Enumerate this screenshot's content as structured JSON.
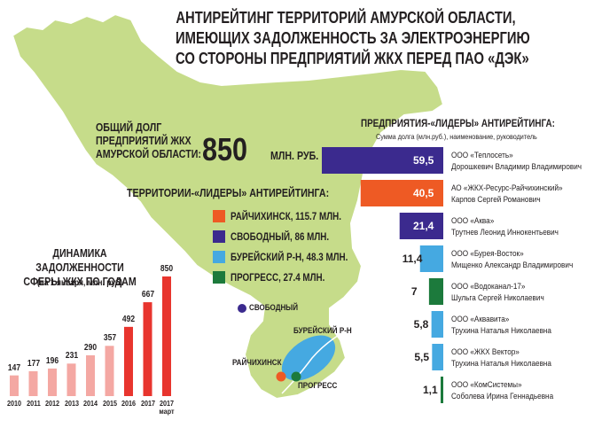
{
  "title": {
    "line1": "АНТИРЕЙТИНГ ТЕРРИТОРИЙ АМУРСКОЙ ОБЛАСТИ,",
    "line2": "ИМЕЮЩИХ ЗАДОЛЖЕННОСТЬ ЗА ЭЛЕКТРОЭНЕРГИЮ",
    "line3": "СО СТОРОНЫ ПРЕДПРИЯТИЙ ЖКХ ПЕРЕД ПАО «ДЭК»"
  },
  "total_debt": {
    "line1": "ОБЩИЙ ДОЛГ",
    "line2": "ПРЕДПРИЯТИЙ ЖКХ",
    "line3": "АМУРСКОЙ ОБЛАСТИ:",
    "value": "850",
    "unit": "МЛН. РУБ."
  },
  "territories": {
    "heading": "ТЕРРИТОРИИ-«ЛИДЕРЫ» АНТИРЕЙТИНГА:",
    "items": [
      {
        "label": "РАЙЧИХИНСК, 115.7 МЛН.",
        "color": "#ee5a24"
      },
      {
        "label": "СВОБОДНЫЙ, 86 МЛН.",
        "color": "#3b2a8e"
      },
      {
        "label": "БУРЕЙСКИЙ Р-Н, 48.3 МЛН.",
        "color": "#45a9e1"
      },
      {
        "label": "ПРОГРЕСС, 27.4 МЛН.",
        "color": "#1c7a3c"
      }
    ]
  },
  "map_labels": {
    "svobodny": "СВОБОДНЫЙ",
    "bureya": "БУРЕЙСКИЙ Р-Н",
    "raichikhinsk": "РАЙЧИХИНСК",
    "progress": "ПРОГРЕСС"
  },
  "dynamics": {
    "title_line1": "ДИНАМИКА ЗАДОЛЖЕННОСТИ",
    "title_line2": "СФЕРЫ ЖКХ ПО ГОДАМ",
    "note": "(на 1 января, млн. руб)"
  },
  "leaders": {
    "heading": "ПРЕДПРИЯТИЯ-«ЛИДЕРЫ» АНТИРЕЙТИНГА:",
    "subheading": "Сумма долга (млн.руб.), наименование, руководитель"
  },
  "colors": {
    "map_fill": "#c6dc8a",
    "navy": "#3b2a8e",
    "orange": "#ee5a24",
    "light_blue": "#45a9e1",
    "green": "#1c7a3c",
    "hist_red": "#e8352e",
    "hist_light": "#f4a8a3"
  },
  "chart_data": [
    {
      "type": "bar",
      "orientation": "vertical",
      "categories": [
        "2010",
        "2011",
        "2012",
        "2013",
        "2014",
        "2015",
        "2016",
        "2017",
        "2017 март"
      ],
      "values": [
        147,
        177,
        196,
        231,
        290,
        357,
        492,
        667,
        850
      ],
      "value_labels": [
        "147",
        "177",
        "196",
        "231",
        "290",
        "357",
        "492",
        "667",
        "850"
      ],
      "year_labels": [
        [
          "2010"
        ],
        [
          "2011"
        ],
        [
          "2012"
        ],
        [
          "2013"
        ],
        [
          "2014"
        ],
        [
          "2015"
        ],
        [
          "2016"
        ],
        [
          "2017"
        ],
        [
          "2017",
          "март"
        ]
      ],
      "title": "ДИНАМИКА ЗАДОЛЖЕННОСТИ СФЕРЫ ЖКХ ПО ГОДАМ",
      "ylim": [
        0,
        850
      ],
      "grid": false
    },
    {
      "type": "bar",
      "orientation": "horizontal",
      "max_value": 59.5,
      "items": [
        {
          "value": 59.5,
          "label": "59,5",
          "company": "ООО «Теплосеть»",
          "head": "Дорошкевич Владимир Владимирович",
          "color": "#3b2a8e"
        },
        {
          "value": 40.5,
          "label": "40,5",
          "company": "АО «ЖКХ-Ресурс-Райчихинский»",
          "head": "Карпов Сергей Романович",
          "color": "#ee5a24"
        },
        {
          "value": 21.4,
          "label": "21,4",
          "company": "ООО «Аква»",
          "head": "Трутнев Леонид Иннокентьевич",
          "color": "#3b2a8e"
        },
        {
          "value": 11.4,
          "label": "11,4",
          "company": "ООО «Бурея-Восток»",
          "head": "Мищенко Александр Владимирович",
          "color": "#45a9e1"
        },
        {
          "value": 7,
          "label": "7",
          "company": "ООО «Водоканал-17»",
          "head": "Шульга Сергей Николаевич",
          "color": "#1c7a3c"
        },
        {
          "value": 5.8,
          "label": "5,8",
          "company": "ООО «Аквавита»",
          "head": "Трухина Наталья Николаевна",
          "color": "#45a9e1"
        },
        {
          "value": 5.5,
          "label": "5,5",
          "company": "ООО «ЖКХ Вектор»",
          "head": "Трухина Наталья Николаевна",
          "color": "#45a9e1"
        },
        {
          "value": 1.1,
          "label": "1,1",
          "company": "ООО «КомСистемы»",
          "head": "Соболева Ирина Геннадьевна",
          "color": "#1c7a3c"
        }
      ],
      "title": "ПРЕДПРИЯТИЯ-«ЛИДЕРЫ» АНТИРЕЙТИНГА:",
      "grid": false
    }
  ]
}
